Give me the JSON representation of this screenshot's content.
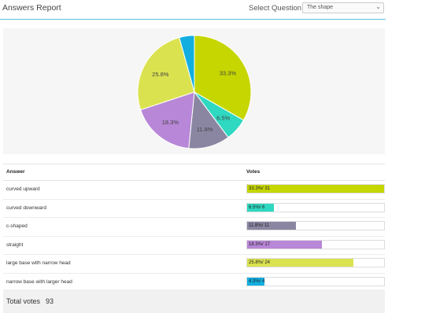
{
  "header": {
    "title": "Answers Report",
    "select_label": "Select Question:",
    "select_value": "The shape"
  },
  "colors": {
    "divider": "#5bc2e7",
    "curved_upward": "#c5d600",
    "curved_downward": "#2fd8c0",
    "c_shaped": "#8a86a2",
    "straight": "#b887d8",
    "large_base": "#dbe24f",
    "narrow_base": "#13aee0"
  },
  "chart_data": {
    "type": "pie",
    "slices": [
      {
        "label": "curved upward",
        "value": 33.3,
        "display": "33.3%",
        "color": "#c5d600"
      },
      {
        "label": "curved downward",
        "value": 6.5,
        "display": "6.5%",
        "color": "#2fd8c0"
      },
      {
        "label": "c-shaped",
        "value": 11.8,
        "display": "11.8%",
        "color": "#8a86a2"
      },
      {
        "label": "straight",
        "value": 18.3,
        "display": "18.3%",
        "color": "#b887d8"
      },
      {
        "label": "large base with narrow head",
        "value": 25.8,
        "display": "25.8%",
        "color": "#dbe24f"
      },
      {
        "label": "narrow base with larger head",
        "value": 4.3,
        "display": "",
        "color": "#13aee0"
      }
    ]
  },
  "table": {
    "headers": {
      "answer": "Answer",
      "votes": "Votes"
    },
    "rows": [
      {
        "answer": "curved upward",
        "percent": 33.3,
        "bar_text": "33.3%/ 31",
        "color": "#c5d600",
        "fill_fraction": 1.0
      },
      {
        "answer": "curved downward",
        "percent": 6.5,
        "bar_text": "6.5%/ 6",
        "color": "#2fd8c0",
        "fill_fraction": 0.194
      },
      {
        "answer": "c-shaped",
        "percent": 11.8,
        "bar_text": "11.8%/ 11",
        "color": "#8a86a2",
        "fill_fraction": 0.355
      },
      {
        "answer": "straight",
        "percent": 18.3,
        "bar_text": "18.3%/ 17",
        "color": "#b887d8",
        "fill_fraction": 0.548
      },
      {
        "answer": "large base with narrow head",
        "percent": 25.8,
        "bar_text": "25.8%/ 24",
        "color": "#dbe24f",
        "fill_fraction": 0.774
      },
      {
        "answer": "narrow base with larger head",
        "percent": 4.3,
        "bar_text": "4.3%/ 4",
        "color": "#13aee0",
        "fill_fraction": 0.129
      }
    ]
  },
  "total": {
    "label": "Total votes",
    "value": "93"
  }
}
